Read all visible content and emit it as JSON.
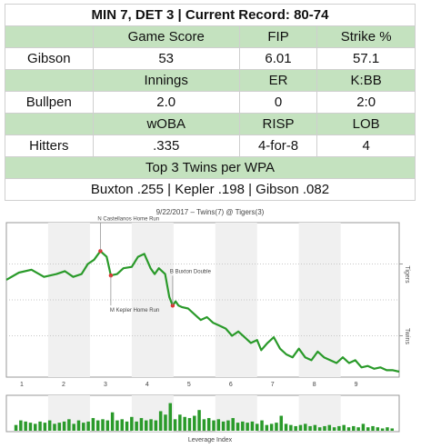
{
  "table": {
    "title": "MIN 7, DET 3 | Current Record: 80-74",
    "sections": [
      {
        "headers": [
          "Game Score",
          "FIP",
          "Strike %"
        ],
        "label": "Gibson",
        "values": [
          "53",
          "6.01",
          "57.1"
        ]
      },
      {
        "headers": [
          "Innings",
          "ER",
          "K:BB"
        ],
        "label": "Bullpen",
        "values": [
          "2.0",
          "0",
          "2:0"
        ]
      },
      {
        "headers": [
          "wOBA",
          "RISP",
          "LOB"
        ],
        "label": "Hitters",
        "values": [
          ".335",
          "4-for-8",
          "4"
        ]
      }
    ],
    "top_title": "Top 3 Twins per WPA",
    "top_values": "Buxton .255 | Kepler .198 | Gibson .082"
  },
  "chart_data": {
    "type": "line",
    "title": "9/22/2017 – Twins(7) @ Tigers(3)",
    "y_top_label": "Tigers",
    "y_bottom_label": "Twins",
    "x_ticks": [
      "1",
      "2",
      "3",
      "4",
      "5",
      "6",
      "7",
      "8",
      "9"
    ],
    "xlim": [
      0.5,
      9.9
    ],
    "ylim": [
      0,
      100
    ],
    "series": [
      {
        "color": "#2a9a2a",
        "x": [
          0.5,
          0.8,
          1.1,
          1.4,
          1.7,
          1.9,
          2.1,
          2.3,
          2.45,
          2.6,
          2.75,
          2.9,
          3.0,
          3.15,
          3.3,
          3.5,
          3.65,
          3.8,
          3.95,
          4.05,
          4.15,
          4.3,
          4.4,
          4.48,
          4.55,
          4.62,
          4.7,
          4.85,
          5.0,
          5.15,
          5.3,
          5.45,
          5.6,
          5.75,
          5.9,
          6.05,
          6.2,
          6.35,
          6.5,
          6.6,
          6.75,
          6.9,
          7.05,
          7.2,
          7.35,
          7.5,
          7.65,
          7.8,
          7.95,
          8.1,
          8.25,
          8.4,
          8.55,
          8.7,
          8.85,
          9.0,
          9.15,
          9.3,
          9.45,
          9.6,
          9.75,
          9.9
        ],
        "y": [
          64,
          69,
          71,
          66,
          68,
          70,
          66,
          68,
          75,
          78,
          84,
          80,
          67,
          68,
          72,
          73,
          80,
          82,
          72,
          68,
          72,
          68,
          52,
          46,
          49,
          46,
          45,
          44,
          40,
          36,
          38,
          34,
          32,
          30,
          25,
          28,
          24,
          20,
          22,
          15,
          20,
          24,
          16,
          12,
          10,
          16,
          10,
          8,
          14,
          10,
          8,
          6,
          10,
          6,
          8,
          3,
          4,
          2,
          3,
          1,
          1,
          0
        ],
        "annotations": [
          {
            "x": 2.75,
            "y": 84,
            "text": "N Castellanos Home Run"
          },
          {
            "x": 3.0,
            "y": 67,
            "text": "M Kepler Home Run"
          },
          {
            "x": 4.48,
            "y": 46,
            "text": "B Buxton Double"
          }
        ]
      }
    ],
    "leverage_label": "Leverage Index",
    "leverage_values": [
      0.5,
      0.9,
      0.8,
      0.7,
      0.6,
      0.8,
      0.7,
      0.9,
      0.6,
      0.7,
      0.8,
      1.0,
      0.6,
      0.9,
      0.7,
      0.8,
      1.1,
      0.9,
      1.0,
      0.9,
      1.6,
      0.9,
      1.0,
      0.8,
      1.2,
      0.8,
      1.1,
      0.9,
      1.0,
      0.9,
      1.7,
      1.4,
      2.4,
      1.0,
      1.4,
      1.2,
      1.1,
      1.3,
      1.8,
      1.0,
      1.1,
      0.9,
      1.0,
      0.8,
      0.9,
      1.1,
      0.7,
      0.8,
      0.7,
      0.8,
      0.6,
      0.9,
      0.5,
      0.6,
      0.7,
      1.3,
      0.6,
      0.5,
      0.4,
      0.5,
      0.6,
      0.4,
      0.5,
      0.3,
      0.4,
      0.5,
      0.3,
      0.4,
      0.5,
      0.3,
      0.4,
      0.3,
      0.6,
      0.3,
      0.4,
      0.3,
      0.2,
      0.3,
      0.2
    ]
  }
}
